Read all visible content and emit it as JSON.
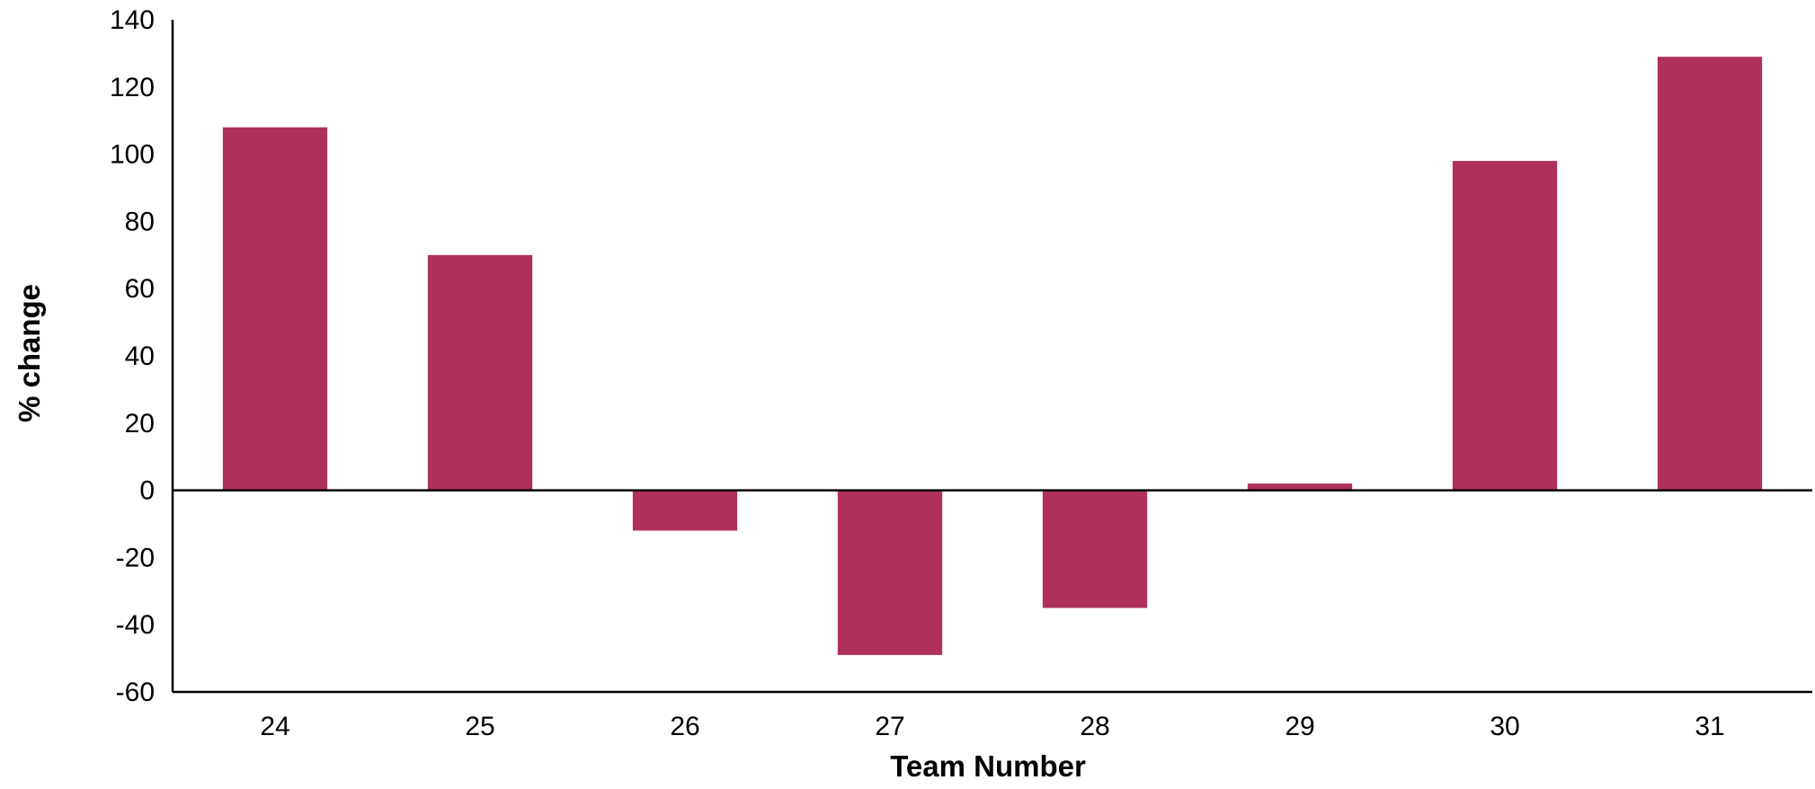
{
  "chart_data": {
    "type": "bar",
    "title": "",
    "xlabel": "Team Number",
    "ylabel": "% change",
    "categories": [
      "24",
      "25",
      "26",
      "27",
      "28",
      "29",
      "30",
      "31"
    ],
    "values": [
      108,
      70,
      -12,
      -49,
      -35,
      2,
      98,
      129
    ],
    "ylim": [
      -60,
      140
    ],
    "yticks": [
      140,
      120,
      100,
      80,
      60,
      40,
      20,
      0,
      -20,
      -40,
      -60
    ],
    "bar_color": "#b0305d",
    "grid": false,
    "legend": "none"
  }
}
